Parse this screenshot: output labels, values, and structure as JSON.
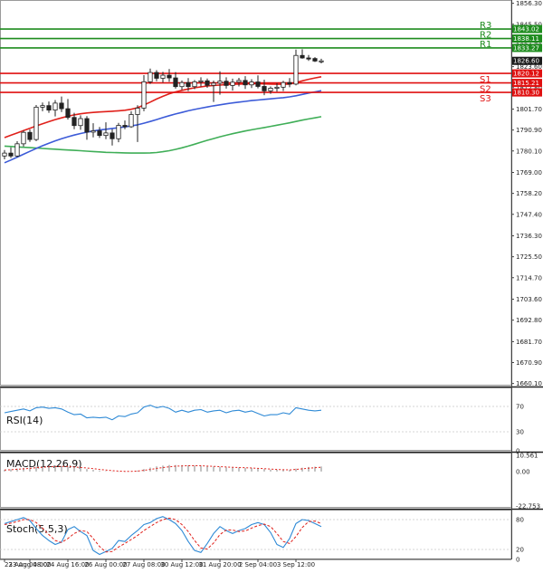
{
  "chart_data": {
    "type": "candlestick",
    "price": {
      "ylim": [
        1659.0,
        1858.0
      ],
      "ticks": [
        1660.1,
        1670.9,
        1681.7,
        1692.8,
        1703.6,
        1714.7,
        1725.5,
        1736.3,
        1747.4,
        1758.2,
        1769.0,
        1780.1,
        1790.9,
        1801.7,
        1812.8,
        1823.6,
        1834.7,
        1845.5,
        1856.3
      ],
      "tick_labels": [
        "1660.10",
        "1670.90",
        "1681.70",
        "1692.80",
        "1703.60",
        "1714.70",
        "1725.50",
        "1736.30",
        "1747.40",
        "1758.20",
        "1769.00",
        "1780.10",
        "1790.90",
        "1801.70",
        "1812.80",
        "1823.60",
        "1834.70",
        "1845.50",
        "1856.30"
      ],
      "candles": [
        {
          "o": 1777.5,
          "h": 1780.6,
          "l": 1775.8,
          "c": 1779.0
        },
        {
          "o": 1779.0,
          "h": 1782.0,
          "l": 1776.5,
          "c": 1777.5
        },
        {
          "o": 1777.5,
          "h": 1785.1,
          "l": 1776.9,
          "c": 1783.8
        },
        {
          "o": 1783.8,
          "h": 1790.6,
          "l": 1782.4,
          "c": 1789.7
        },
        {
          "o": 1789.7,
          "h": 1791.2,
          "l": 1784.8,
          "c": 1786.0
        },
        {
          "o": 1786.0,
          "h": 1803.8,
          "l": 1785.2,
          "c": 1802.7
        },
        {
          "o": 1802.7,
          "h": 1805.1,
          "l": 1800.6,
          "c": 1803.5
        },
        {
          "o": 1803.5,
          "h": 1805.6,
          "l": 1799.8,
          "c": 1801.2
        },
        {
          "o": 1801.2,
          "h": 1806.4,
          "l": 1797.9,
          "c": 1804.8
        },
        {
          "o": 1804.8,
          "h": 1808.2,
          "l": 1800.2,
          "c": 1801.9
        },
        {
          "o": 1801.9,
          "h": 1806.9,
          "l": 1796.3,
          "c": 1797.4
        },
        {
          "o": 1797.4,
          "h": 1799.8,
          "l": 1791.3,
          "c": 1793.2
        },
        {
          "o": 1793.2,
          "h": 1798.5,
          "l": 1791.0,
          "c": 1796.8
        },
        {
          "o": 1796.8,
          "h": 1798.1,
          "l": 1785.9,
          "c": 1789.8
        },
        {
          "o": 1789.8,
          "h": 1794.4,
          "l": 1787.1,
          "c": 1790.5
        },
        {
          "o": 1790.5,
          "h": 1792.5,
          "l": 1786.8,
          "c": 1788.1
        },
        {
          "o": 1788.1,
          "h": 1794.9,
          "l": 1786.2,
          "c": 1789.4
        },
        {
          "o": 1789.4,
          "h": 1791.4,
          "l": 1782.9,
          "c": 1786.4
        },
        {
          "o": 1786.4,
          "h": 1794.6,
          "l": 1784.6,
          "c": 1793.3
        },
        {
          "o": 1793.3,
          "h": 1795.8,
          "l": 1791.3,
          "c": 1792.6
        },
        {
          "o": 1792.6,
          "h": 1800.6,
          "l": 1792.0,
          "c": 1798.9
        },
        {
          "o": 1798.9,
          "h": 1803.7,
          "l": 1784.7,
          "c": 1802.2
        },
        {
          "o": 1802.2,
          "h": 1819.2,
          "l": 1800.6,
          "c": 1815.8
        },
        {
          "o": 1815.8,
          "h": 1822.6,
          "l": 1814.7,
          "c": 1820.6
        },
        {
          "o": 1820.6,
          "h": 1821.8,
          "l": 1816.1,
          "c": 1817.6
        },
        {
          "o": 1817.6,
          "h": 1820.9,
          "l": 1815.4,
          "c": 1819.2
        },
        {
          "o": 1819.2,
          "h": 1822.4,
          "l": 1815.8,
          "c": 1817.8
        },
        {
          "o": 1817.8,
          "h": 1820.8,
          "l": 1812.3,
          "c": 1813.3
        },
        {
          "o": 1813.3,
          "h": 1816.5,
          "l": 1811.6,
          "c": 1815.4
        },
        {
          "o": 1815.4,
          "h": 1817.7,
          "l": 1811.0,
          "c": 1813.3
        },
        {
          "o": 1813.3,
          "h": 1816.7,
          "l": 1812.0,
          "c": 1815.8
        },
        {
          "o": 1815.8,
          "h": 1818.1,
          "l": 1813.4,
          "c": 1816.3
        },
        {
          "o": 1816.3,
          "h": 1817.5,
          "l": 1812.7,
          "c": 1814.0
        },
        {
          "o": 1814.0,
          "h": 1816.4,
          "l": 1805.4,
          "c": 1815.1
        },
        {
          "o": 1815.1,
          "h": 1821.2,
          "l": 1809.1,
          "c": 1816.1
        },
        {
          "o": 1816.1,
          "h": 1818.1,
          "l": 1812.3,
          "c": 1813.9
        },
        {
          "o": 1813.9,
          "h": 1817.4,
          "l": 1811.2,
          "c": 1815.6
        },
        {
          "o": 1815.6,
          "h": 1817.8,
          "l": 1813.4,
          "c": 1816.5
        },
        {
          "o": 1816.5,
          "h": 1818.7,
          "l": 1812.1,
          "c": 1814.2
        },
        {
          "o": 1814.2,
          "h": 1817.1,
          "l": 1812.6,
          "c": 1815.7
        },
        {
          "o": 1815.7,
          "h": 1819.1,
          "l": 1812.4,
          "c": 1813.4
        },
        {
          "o": 1813.4,
          "h": 1816.9,
          "l": 1808.9,
          "c": 1811.1
        },
        {
          "o": 1811.1,
          "h": 1813.4,
          "l": 1809.6,
          "c": 1812.5
        },
        {
          "o": 1812.5,
          "h": 1815.1,
          "l": 1810.7,
          "c": 1813.0
        },
        {
          "o": 1813.0,
          "h": 1816.3,
          "l": 1811.0,
          "c": 1815.4
        },
        {
          "o": 1815.4,
          "h": 1817.7,
          "l": 1813.0,
          "c": 1814.6
        },
        {
          "o": 1814.6,
          "h": 1832.4,
          "l": 1814.0,
          "c": 1829.4
        },
        {
          "o": 1829.4,
          "h": 1832.6,
          "l": 1827.7,
          "c": 1828.1
        },
        {
          "o": 1828.1,
          "h": 1829.6,
          "l": 1826.6,
          "c": 1827.8
        },
        {
          "o": 1827.8,
          "h": 1828.5,
          "l": 1826.0,
          "c": 1826.5
        },
        {
          "o": 1826.5,
          "h": 1827.7,
          "l": 1825.3,
          "c": 1826.6
        }
      ],
      "ma_red": [
        1787.0,
        1788.2,
        1789.4,
        1790.6,
        1791.8,
        1793.0,
        1794.1,
        1795.2,
        1796.3,
        1797.2,
        1798.0,
        1798.7,
        1799.3,
        1799.7,
        1800.0,
        1800.2,
        1800.4,
        1800.6,
        1800.8,
        1801.1,
        1801.6,
        1802.4,
        1803.8,
        1805.3,
        1806.9,
        1808.3,
        1809.6,
        1810.6,
        1811.4,
        1812.1,
        1812.7,
        1813.2,
        1813.6,
        1813.9,
        1814.1,
        1814.3,
        1814.5,
        1814.6,
        1814.7,
        1814.8,
        1814.8,
        1814.7,
        1814.6,
        1814.5,
        1814.5,
        1814.6,
        1815.4,
        1816.3,
        1817.1,
        1817.8,
        1818.4
      ],
      "ma_blue": [
        1774.0,
        1775.4,
        1776.9,
        1778.4,
        1779.9,
        1781.4,
        1782.8,
        1784.1,
        1785.3,
        1786.4,
        1787.4,
        1788.3,
        1789.1,
        1789.8,
        1790.4,
        1790.9,
        1791.3,
        1791.7,
        1792.1,
        1792.5,
        1793.0,
        1793.6,
        1794.4,
        1795.3,
        1796.3,
        1797.3,
        1798.3,
        1799.2,
        1800.0,
        1800.8,
        1801.5,
        1802.2,
        1802.8,
        1803.4,
        1803.9,
        1804.4,
        1804.9,
        1805.3,
        1805.7,
        1806.1,
        1806.4,
        1806.7,
        1807.0,
        1807.3,
        1807.6,
        1808.0,
        1808.6,
        1809.3,
        1810.0,
        1810.6,
        1811.2
      ],
      "ma_green": [
        1782.6,
        1782.4,
        1782.2,
        1782.0,
        1781.8,
        1781.6,
        1781.4,
        1781.2,
        1781.0,
        1780.8,
        1780.6,
        1780.4,
        1780.2,
        1780.0,
        1779.8,
        1779.6,
        1779.4,
        1779.3,
        1779.2,
        1779.1,
        1779.0,
        1779.0,
        1779.0,
        1779.1,
        1779.3,
        1779.7,
        1780.2,
        1780.9,
        1781.7,
        1782.6,
        1783.6,
        1784.6,
        1785.6,
        1786.5,
        1787.4,
        1788.2,
        1789.0,
        1789.7,
        1790.4,
        1791.0,
        1791.6,
        1792.2,
        1792.8,
        1793.4,
        1794.0,
        1794.6,
        1795.3,
        1796.0,
        1796.6,
        1797.2,
        1797.8
      ],
      "levels": [
        {
          "name": "R3",
          "value": 1843.02,
          "label": "1843.02",
          "color": "#1e8c1e"
        },
        {
          "name": "R2",
          "value": 1838.11,
          "label": "1838.11",
          "color": "#1e8c1e"
        },
        {
          "name": "R1",
          "value": 1833.27,
          "label": "1833.27",
          "color": "#1e8c1e"
        },
        {
          "name": "S1",
          "value": 1820.12,
          "label": "1820.12",
          "color": "#e01010"
        },
        {
          "name": "S2",
          "value": 1815.21,
          "label": "1815.21",
          "color": "#e01010"
        },
        {
          "name": "S3",
          "value": 1810.3,
          "label": "1810.30",
          "color": "#e01010"
        }
      ],
      "current": {
        "label": "1826.60",
        "value": 1826.6
      }
    },
    "x_ticks": [
      {
        "label": "23 Aug 04:00",
        "i": 0
      },
      {
        "label": "23 Aug 08:00",
        "i": 4
      },
      {
        "label": "24 Aug 16:00",
        "i": 10
      },
      {
        "label": "26 Aug 00:00",
        "i": 16
      },
      {
        "label": "27 Aug 08:00",
        "i": 22
      },
      {
        "label": "30 Aug 12:00",
        "i": 28
      },
      {
        "label": "31 Aug 20:00",
        "i": 34
      },
      {
        "label": "2 Sep 04:00",
        "i": 40
      },
      {
        "label": "3 Sep 12:00",
        "i": 46
      }
    ],
    "rsi": {
      "label": "RSI(14)",
      "ylim": [
        0,
        100
      ],
      "ticks": [
        {
          "v": 70,
          "t": "70"
        },
        {
          "v": 30,
          "t": "30"
        },
        {
          "v": 0,
          "t": "0"
        }
      ],
      "values": [
        60,
        62,
        64,
        66,
        63,
        68,
        69,
        67,
        68,
        66,
        61,
        57,
        58,
        52,
        53,
        52,
        53,
        49,
        55,
        54,
        58,
        60,
        69,
        72,
        68,
        70,
        67,
        61,
        64,
        61,
        64,
        65,
        61,
        63,
        64,
        60,
        63,
        64,
        61,
        63,
        59,
        55,
        57,
        57,
        60,
        58,
        68,
        66,
        64,
        63,
        64
      ]
    },
    "macd": {
      "label": "MACD(12,26,9)",
      "ylim": [
        -24.0,
        12.5
      ],
      "ticks": [
        {
          "v": 10.561,
          "t": "10.561"
        },
        {
          "v": 0.0,
          "t": "0.00"
        },
        {
          "v": -22.753,
          "t": "-22.753"
        }
      ],
      "histogram": [
        1.2,
        1.5,
        1.9,
        2.4,
        2.6,
        3.2,
        3.6,
        3.8,
        3.9,
        3.7,
        3.3,
        2.7,
        2.3,
        1.6,
        1.1,
        0.6,
        0.3,
        -0.2,
        -0.2,
        -0.2,
        0.1,
        0.6,
        1.6,
        2.6,
        3.4,
        3.9,
        4.3,
        4.3,
        4.2,
        4.1,
        3.9,
        3.8,
        3.5,
        3.3,
        3.1,
        2.8,
        2.7,
        2.6,
        2.4,
        2.3,
        2.0,
        1.6,
        1.3,
        1.1,
        1.1,
        1.0,
        1.9,
        2.5,
        3.0,
        3.2,
        3.3
      ],
      "signal": [
        1.0,
        1.2,
        1.5,
        1.8,
        2.1,
        2.5,
        2.8,
        3.1,
        3.3,
        3.4,
        3.3,
        3.0,
        2.7,
        2.3,
        1.9,
        1.4,
        1.0,
        0.6,
        0.3,
        0.1,
        0.1,
        0.3,
        0.8,
        1.4,
        2.0,
        2.6,
        3.1,
        3.5,
        3.7,
        3.8,
        3.8,
        3.8,
        3.6,
        3.4,
        3.2,
        3.0,
        2.8,
        2.6,
        2.5,
        2.3,
        2.1,
        1.9,
        1.6,
        1.4,
        1.2,
        1.1,
        1.4,
        1.8,
        2.2,
        2.5,
        2.8
      ]
    },
    "stoch": {
      "label": "Stoch(5,5,3)",
      "ylim": [
        0,
        100
      ],
      "ticks": [
        {
          "v": 80,
          "t": "80"
        },
        {
          "v": 20,
          "t": "20"
        },
        {
          "v": 0,
          "t": "0"
        }
      ],
      "k": [
        72,
        76,
        80,
        84,
        78,
        62,
        48,
        38,
        30,
        35,
        60,
        66,
        56,
        48,
        18,
        10,
        16,
        22,
        38,
        36,
        48,
        58,
        70,
        74,
        82,
        86,
        80,
        72,
        58,
        36,
        18,
        14,
        32,
        52,
        66,
        58,
        52,
        58,
        62,
        70,
        74,
        70,
        54,
        30,
        24,
        42,
        72,
        80,
        78,
        72,
        66
      ],
      "d": [
        70,
        73,
        76,
        80,
        80,
        74,
        63,
        50,
        38,
        34,
        42,
        52,
        58,
        56,
        42,
        26,
        15,
        16,
        25,
        32,
        40,
        48,
        58,
        66,
        74,
        80,
        83,
        80,
        70,
        56,
        38,
        23,
        21,
        33,
        50,
        59,
        59,
        56,
        57,
        63,
        68,
        71,
        66,
        52,
        36,
        32,
        46,
        64,
        76,
        77,
        72
      ]
    }
  }
}
